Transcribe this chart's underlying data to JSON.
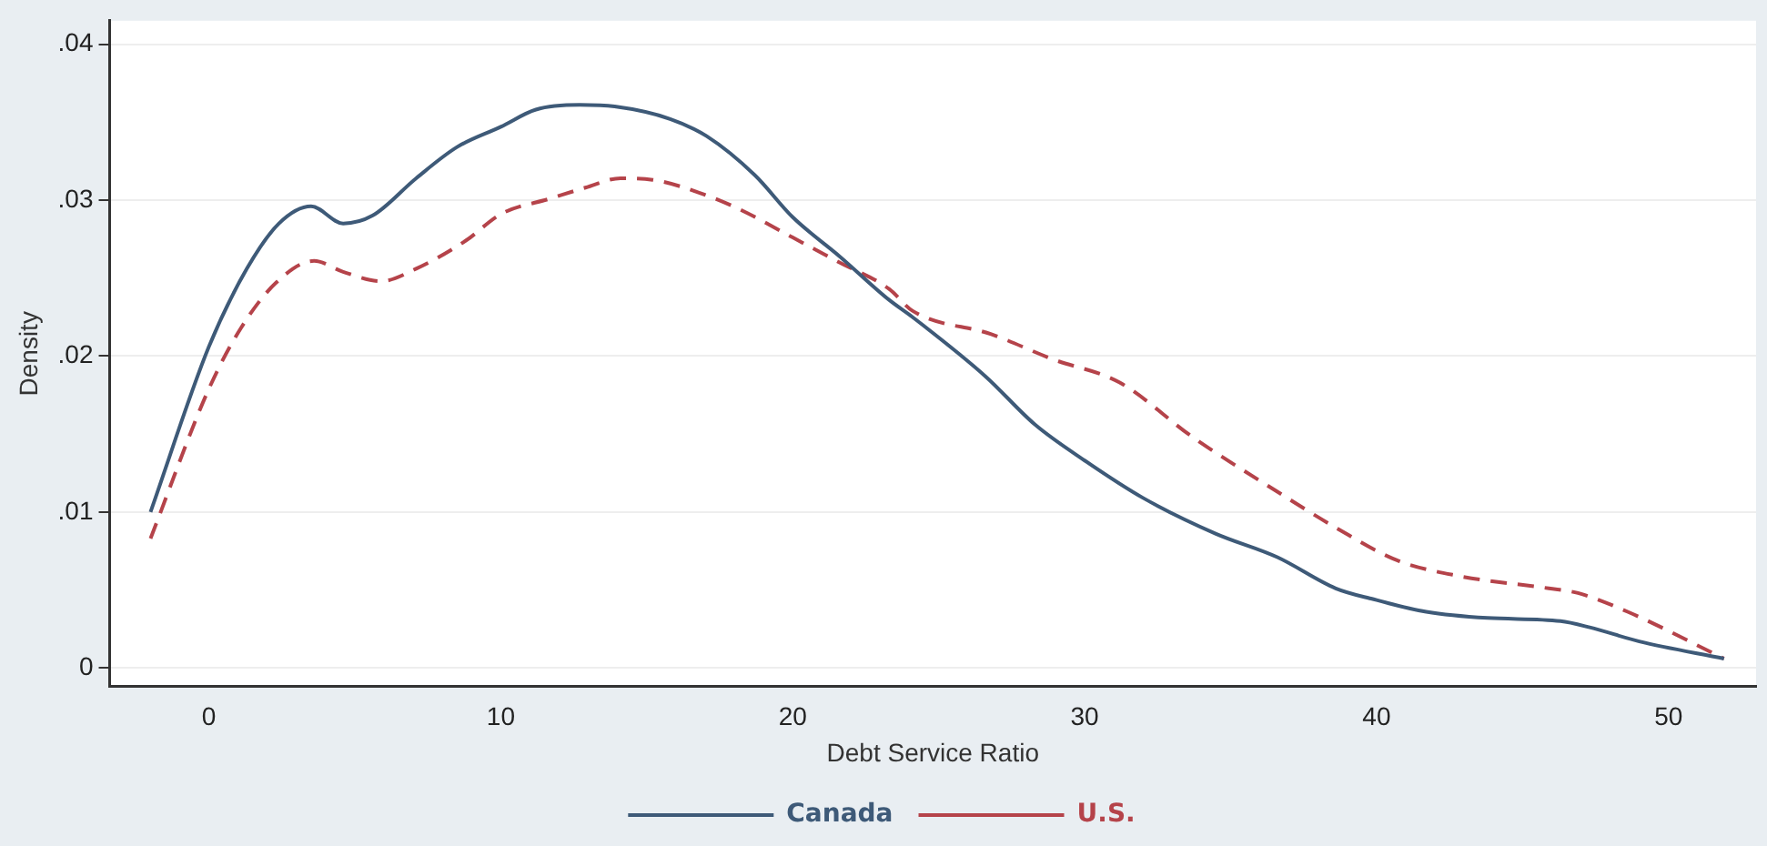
{
  "chart_data": {
    "type": "line",
    "xlabel": "Debt Service Ratio",
    "ylabel": "Density",
    "xlim": [
      -3.4,
      53
    ],
    "xticks": [
      0,
      10,
      20,
      30,
      40,
      50
    ],
    "ylim": [
      -0.0012,
      0.0415
    ],
    "yticks": [
      0,
      {
        "value": 0.01,
        "label": ".01"
      },
      {
        "value": 0.02,
        "label": ".02"
      },
      {
        "value": 0.03,
        "label": ".03"
      },
      {
        "value": 0.04,
        "label": ".04"
      }
    ],
    "grid": "y",
    "legend": "bottom",
    "marker": "none",
    "series": [
      {
        "name": "Canada",
        "color": "#3e5a78",
        "line_style": "solid",
        "x": [
          -2,
          0,
          1.3,
          2.4,
          3.5,
          4.6,
          5.6,
          7.1,
          8.5,
          10,
          11.2,
          12.7,
          13.9,
          15.8,
          17.05,
          18.7,
          20,
          21.6,
          23.3,
          24.1,
          26.6,
          28.3,
          30,
          32,
          34.5,
          36.6,
          38.6,
          39.9,
          41.7,
          43.8,
          46.3,
          47.3,
          49,
          51.9
        ],
        "values": [
          0.01,
          0.0206,
          0.0256,
          0.0285,
          0.0296,
          0.0285,
          0.029,
          0.0314,
          0.0334,
          0.0347,
          0.0358,
          0.0361,
          0.036,
          0.0352,
          0.0341,
          0.0316,
          0.0289,
          0.0264,
          0.0236,
          0.0225,
          0.0187,
          0.0156,
          0.0133,
          0.0109,
          0.0086,
          0.0071,
          0.0051,
          0.0044,
          0.0036,
          0.0032,
          0.003,
          0.0026,
          0.0017,
          0.0006
        ]
      },
      {
        "name": "U.S.",
        "color": "#b5434a",
        "line_style": "dashed",
        "x": [
          -2,
          0,
          1.1,
          2.3,
          3.6,
          4.6,
          5.9,
          7.1,
          8.8,
          10,
          11.7,
          12.9,
          14.1,
          15.2,
          17.05,
          18.3,
          20,
          21.6,
          23.3,
          24.1,
          26.8,
          28.9,
          31.2,
          33.7,
          36.6,
          38.6,
          40.7,
          42.8,
          45.9,
          46.9,
          48.6,
          51.9
        ],
        "values": [
          0.0083,
          0.0179,
          0.0218,
          0.0247,
          0.0261,
          0.0254,
          0.0248,
          0.0256,
          0.0274,
          0.0291,
          0.0301,
          0.0308,
          0.0314,
          0.0313,
          0.0303,
          0.0293,
          0.0276,
          0.026,
          0.0243,
          0.0229,
          0.0214,
          0.0198,
          0.0183,
          0.0148,
          0.0113,
          0.009,
          0.0069,
          0.0059,
          0.0051,
          0.0048,
          0.0036,
          0.0006
        ]
      }
    ]
  }
}
